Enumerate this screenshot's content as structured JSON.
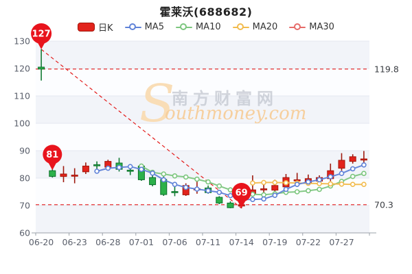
{
  "title": "霍莱沃(688682)",
  "legend": {
    "items": [
      {
        "label": "日K",
        "type": "candle",
        "color": "#e2231c",
        "border": "#a31408"
      },
      {
        "label": "MA5",
        "type": "line",
        "color": "#5f82d8"
      },
      {
        "label": "MA10",
        "type": "line",
        "color": "#7cc67e"
      },
      {
        "label": "MA20",
        "type": "line",
        "color": "#f2bb4d"
      },
      {
        "label": "MA30",
        "type": "line",
        "color": "#e66a68"
      }
    ]
  },
  "watermark": {
    "initial": "S",
    "cjk": "南方财富网",
    "latin": "outhmoney.com"
  },
  "annotations": {
    "balloons": [
      {
        "label": "127",
        "index": 0,
        "value": 127.0
      },
      {
        "label": "81",
        "index": 1,
        "value": 82.9
      },
      {
        "label": "69",
        "index": 18,
        "value": 69.0
      }
    ],
    "hlines": [
      {
        "value": 119.8,
        "label": "119.8"
      },
      {
        "value": 70.3,
        "label": "70.3"
      }
    ],
    "trendline": {
      "from_index": 0,
      "from_value": 127.0,
      "to_index": 18,
      "to_value": 69.0
    }
  },
  "chart_data": {
    "type": "candlestick",
    "title": "霍莱沃(688682)",
    "ylim": [
      60,
      130
    ],
    "y_ticks": [
      130,
      120,
      110,
      100,
      90,
      80,
      70,
      60
    ],
    "x_label_indices": [
      0,
      3,
      6,
      9,
      12,
      15,
      18,
      21,
      24,
      27
    ],
    "legend_position": "top",
    "grid": "alternating horizontal bands",
    "candles": [
      {
        "d": "06-20",
        "o": 120.5,
        "c": 119.8,
        "h": 127.0,
        "l": 115.6
      },
      {
        "d": "06-21",
        "o": 82.7,
        "c": 80.6,
        "h": 83.2,
        "l": 80.2
      },
      {
        "d": "06-22",
        "o": 80.6,
        "c": 81.5,
        "h": 84.4,
        "l": 78.5
      },
      {
        "d": "06-23",
        "o": 80.8,
        "c": 81.1,
        "h": 83.6,
        "l": 78.1
      },
      {
        "d": "06-24",
        "o": 82.3,
        "c": 84.4,
        "h": 85.7,
        "l": 81.5
      },
      {
        "d": "06-27",
        "o": 84.9,
        "c": 84.7,
        "h": 86.1,
        "l": 81.9
      },
      {
        "d": "06-28",
        "o": 84.0,
        "c": 86.1,
        "h": 86.7,
        "l": 83.4
      },
      {
        "d": "06-29",
        "o": 85.5,
        "c": 83.2,
        "h": 87.4,
        "l": 82.4
      },
      {
        "d": "06-30",
        "o": 82.9,
        "c": 82.7,
        "h": 84.4,
        "l": 81.1
      },
      {
        "d": "07-01",
        "o": 84.4,
        "c": 79.4,
        "h": 84.8,
        "l": 79.0
      },
      {
        "d": "07-04",
        "o": 80.2,
        "c": 77.6,
        "h": 81.1,
        "l": 77.0
      },
      {
        "d": "07-05",
        "o": 79.5,
        "c": 74.0,
        "h": 80.6,
        "l": 73.5
      },
      {
        "d": "07-06",
        "o": 75.1,
        "c": 74.9,
        "h": 78.1,
        "l": 73.4
      },
      {
        "d": "07-07",
        "o": 73.9,
        "c": 77.3,
        "h": 78.1,
        "l": 73.5
      },
      {
        "d": "07-08",
        "o": 75.9,
        "c": 76.1,
        "h": 78.9,
        "l": 74.3
      },
      {
        "d": "07-11",
        "o": 76.4,
        "c": 74.7,
        "h": 77.3,
        "l": 74.3
      },
      {
        "d": "07-12",
        "o": 73.0,
        "c": 70.9,
        "h": 73.4,
        "l": 70.5
      },
      {
        "d": "07-13",
        "o": 70.9,
        "c": 69.2,
        "h": 71.5,
        "l": 69.0
      },
      {
        "d": "07-14",
        "o": 69.8,
        "c": 70.3,
        "h": 71.0,
        "l": 69.0
      },
      {
        "d": "07-15",
        "o": 74.3,
        "c": 75.7,
        "h": 81.0,
        "l": 73.9
      },
      {
        "d": "07-18",
        "o": 75.9,
        "c": 76.1,
        "h": 78.5,
        "l": 74.3
      },
      {
        "d": "07-19",
        "o": 75.6,
        "c": 77.3,
        "h": 79.4,
        "l": 74.7
      },
      {
        "d": "07-20",
        "o": 76.8,
        "c": 80.2,
        "h": 81.5,
        "l": 76.4
      },
      {
        "d": "07-21",
        "o": 79.2,
        "c": 79.4,
        "h": 81.9,
        "l": 76.8
      },
      {
        "d": "07-22",
        "o": 78.1,
        "c": 79.8,
        "h": 81.3,
        "l": 77.8
      },
      {
        "d": "07-25",
        "o": 78.9,
        "c": 80.2,
        "h": 81.0,
        "l": 78.5
      },
      {
        "d": "07-26",
        "o": 79.8,
        "c": 82.7,
        "h": 85.3,
        "l": 78.9
      },
      {
        "d": "07-27",
        "o": 83.6,
        "c": 86.5,
        "h": 89.1,
        "l": 82.7
      },
      {
        "d": "07-28",
        "o": 86.1,
        "c": 87.8,
        "h": 88.7,
        "l": 85.3
      },
      {
        "d": "07-29",
        "o": 86.9,
        "c": 87.0,
        "h": 89.9,
        "l": 84.4
      }
    ],
    "series": [
      {
        "name": "MA5",
        "color": "#5f82d8",
        "values": [
          null,
          null,
          null,
          null,
          null,
          82.5,
          83.6,
          83.9,
          84.2,
          83.2,
          81.8,
          79.4,
          77.7,
          76.6,
          76.0,
          75.4,
          74.8,
          73.6,
          72.2,
          72.2,
          72.4,
          73.7,
          75.9,
          77.7,
          78.6,
          79.4,
          80.5,
          81.7,
          83.4,
          84.8
        ]
      },
      {
        "name": "MA10",
        "color": "#7cc67e",
        "values": [
          null,
          null,
          null,
          null,
          null,
          null,
          null,
          null,
          null,
          84.4,
          82.1,
          81.5,
          80.8,
          80.4,
          79.6,
          78.6,
          77.1,
          75.7,
          74.4,
          74.1,
          73.9,
          74.3,
          74.8,
          75.0,
          75.4,
          75.9,
          77.1,
          78.8,
          80.6,
          81.7
        ]
      },
      {
        "name": "MA20",
        "color": "#f2bb4d",
        "values": [
          null,
          null,
          null,
          null,
          null,
          null,
          null,
          null,
          null,
          null,
          null,
          null,
          null,
          null,
          null,
          null,
          null,
          null,
          null,
          78.2,
          78.4,
          78.4,
          78.3,
          78.2,
          78.1,
          78.0,
          77.9,
          77.8,
          77.7,
          77.7
        ]
      },
      {
        "name": "MA30",
        "color": "#e66a68",
        "values": []
      }
    ]
  },
  "colors": {
    "up": "#e2231c",
    "up_border": "#a31408",
    "up_wick": "#9e1a0f",
    "down": "#2cb14a",
    "down_border": "#0c6e2b",
    "down_wick": "#117a33",
    "dashed": "#e31a1a",
    "balloon": "#e8141d",
    "band_a": "#f2f4f9",
    "band_b": "#fcfdff",
    "grid": "#e4e8f0",
    "axis": "#9aa0a8",
    "tick_text": "#5a5f6b",
    "ref_text": "#3a3d42",
    "watermark_cjk": "#c3c7d0",
    "watermark_orange": "#f6cf9e",
    "watermark_s": "#f9ddb6"
  }
}
